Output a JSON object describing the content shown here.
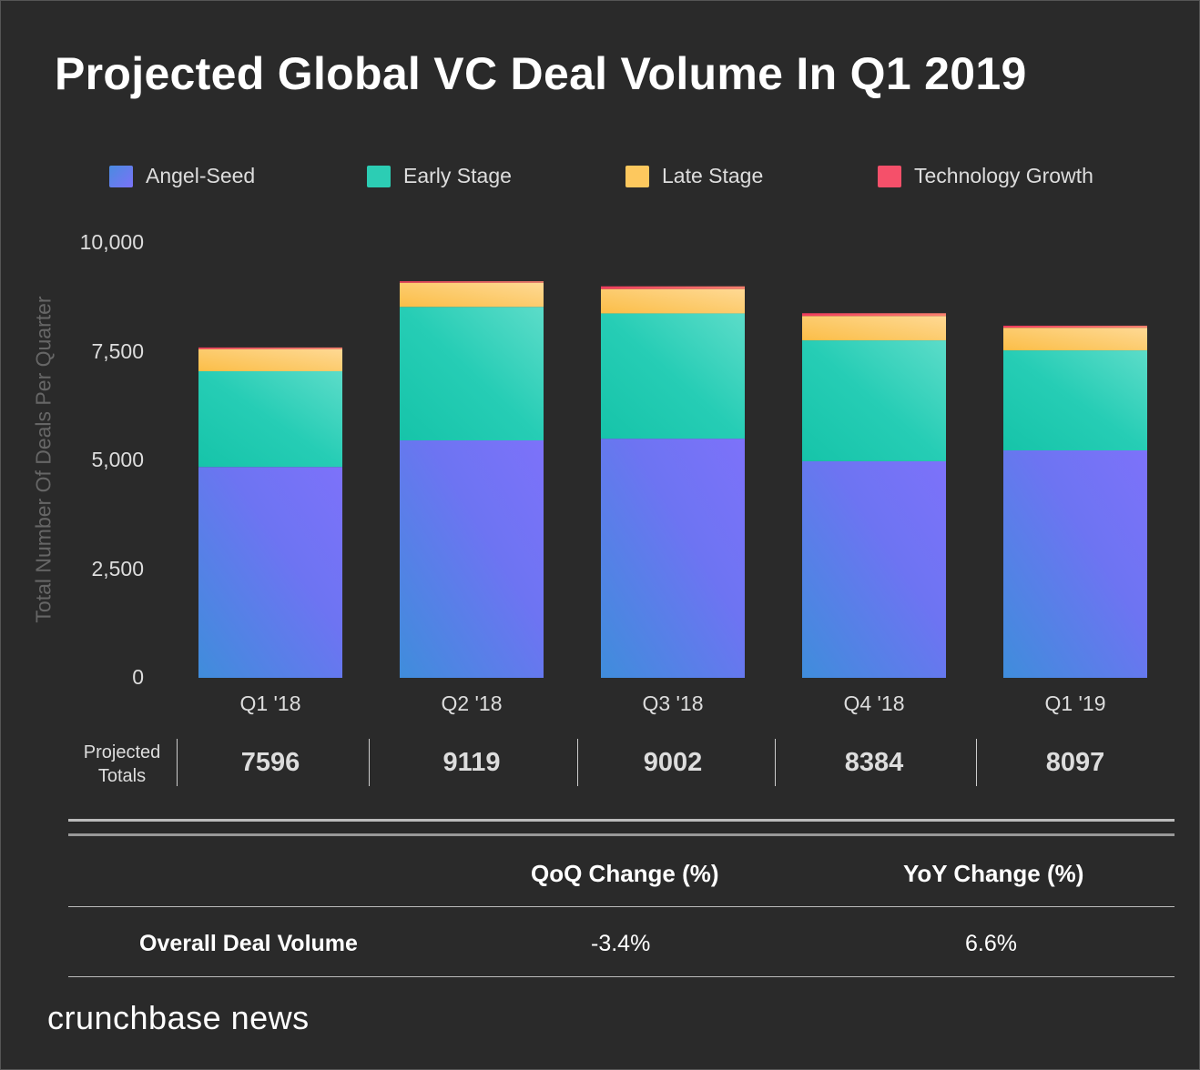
{
  "chart_data": {
    "type": "bar",
    "stacked": true,
    "title": "Projected Global VC Deal Volume In Q1 2019",
    "ylabel": "Total Number Of Deals Per Quarter",
    "xlabel": "",
    "ylim": [
      0,
      10000
    ],
    "yticks": [
      "0",
      "2,500",
      "5,000",
      "7,500",
      "10,000"
    ],
    "ytick_values": [
      0,
      2500,
      5000,
      7500,
      10000
    ],
    "grid": false,
    "legend_placement": "top",
    "categories": [
      "Q1 '18",
      "Q2 '18",
      "Q3 '18",
      "Q4 '18",
      "Q1 '19"
    ],
    "series": [
      {
        "name": "Angel-Seed",
        "color": "#6f72f0",
        "values": [
          4850,
          5460,
          5500,
          4980,
          5230
        ]
      },
      {
        "name": "Early Stage",
        "color": "#2ccdb4",
        "values": [
          2200,
          3070,
          2880,
          2780,
          2300
        ]
      },
      {
        "name": "Late Stage",
        "color": "#fdc85e",
        "values": [
          510,
          555,
          560,
          560,
          520
        ]
      },
      {
        "name": "Technology Growth",
        "color": "#f5506a",
        "values": [
          36,
          34,
          62,
          64,
          47
        ]
      }
    ]
  },
  "totals": {
    "label": "Projected Totals",
    "values": [
      "7596",
      "9119",
      "9002",
      "8384",
      "8097"
    ]
  },
  "table": {
    "headers": [
      "QoQ Change (%)",
      "YoY Change (%)"
    ],
    "row_label": "Overall Deal Volume",
    "values": [
      "-3.4%",
      "6.6%"
    ]
  },
  "brand": "crunchbase news"
}
